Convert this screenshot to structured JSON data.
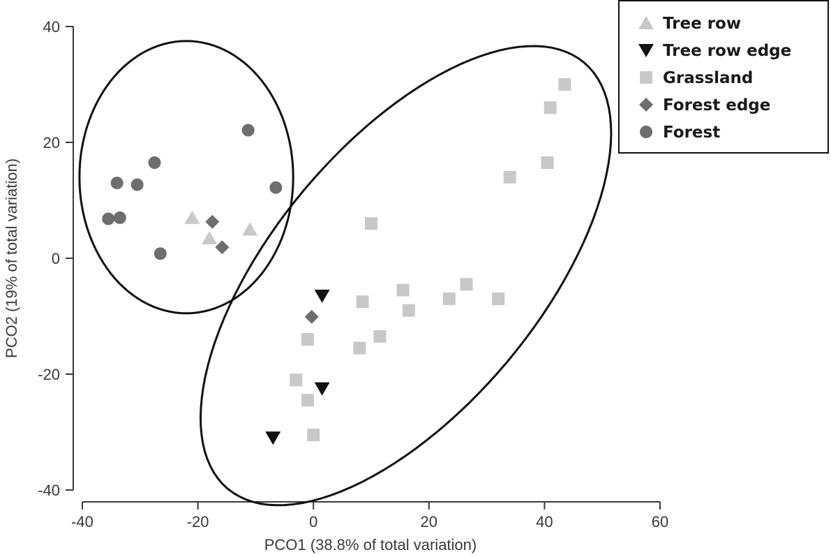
{
  "chart_data": {
    "type": "scatter",
    "xlabel": "PCO1 (38.8% of total variation)",
    "ylabel": "PCO2 (19% of total variation)",
    "xlim": [
      -40,
      60
    ],
    "ylim": [
      -40,
      40
    ],
    "xticks": [
      -40,
      -20,
      0,
      20,
      40,
      60
    ],
    "yticks": [
      -40,
      -20,
      0,
      20,
      40
    ],
    "xtick_labels": [
      "-40",
      "-20",
      "0",
      "20",
      "40",
      "60"
    ],
    "ytick_labels": [
      "-40",
      "-20",
      "0",
      "20",
      "40"
    ],
    "grid": false,
    "legend_position": "top-right",
    "series": [
      {
        "name": "Tree row",
        "marker": "triangle-up",
        "color": "#c8c8c8",
        "points": [
          [
            -21,
            7
          ],
          [
            -18,
            3.5
          ],
          [
            -11,
            5
          ]
        ]
      },
      {
        "name": "Tree row edge",
        "marker": "triangle-down",
        "color": "#111111",
        "points": [
          [
            1.5,
            -6.5
          ],
          [
            1.5,
            -22.5
          ],
          [
            -7,
            -31
          ]
        ]
      },
      {
        "name": "Grassland",
        "marker": "square",
        "color": "#c8c8c8",
        "points": [
          [
            43.5,
            30
          ],
          [
            41,
            26
          ],
          [
            40.5,
            16.5
          ],
          [
            34,
            14
          ],
          [
            10,
            6
          ],
          [
            15.5,
            -5.5
          ],
          [
            26.5,
            -4.5
          ],
          [
            23.5,
            -7
          ],
          [
            32,
            -7
          ],
          [
            16.5,
            -9
          ],
          [
            8.5,
            -7.5
          ],
          [
            11.5,
            -13.5
          ],
          [
            8,
            -15.5
          ],
          [
            -1,
            -14
          ],
          [
            -3,
            -21
          ],
          [
            -1,
            -24.5
          ],
          [
            0,
            -30.5
          ]
        ]
      },
      {
        "name": "Forest edge",
        "marker": "diamond",
        "color": "#6e6e6e",
        "points": [
          [
            -17.5,
            6.3
          ],
          [
            -15.8,
            1.9
          ],
          [
            -0.3,
            -10.1
          ]
        ]
      },
      {
        "name": "Forest",
        "marker": "circle",
        "color": "#6e6e6e",
        "points": [
          [
            -11.3,
            22.1
          ],
          [
            -27.5,
            16.5
          ],
          [
            -34,
            13
          ],
          [
            -30.5,
            12.7
          ],
          [
            -6.5,
            12.2
          ],
          [
            -35.5,
            6.8
          ],
          [
            -33.5,
            7
          ],
          [
            -26.5,
            0.8
          ]
        ]
      }
    ],
    "ellipses": [
      {
        "cx": -22,
        "cy": 14,
        "rx": 18.5,
        "ry": 23.5,
        "angle_deg": 0
      },
      {
        "cx": 16,
        "cy": -3,
        "rx": 48,
        "ry": 23,
        "angle_deg": 50
      }
    ]
  }
}
